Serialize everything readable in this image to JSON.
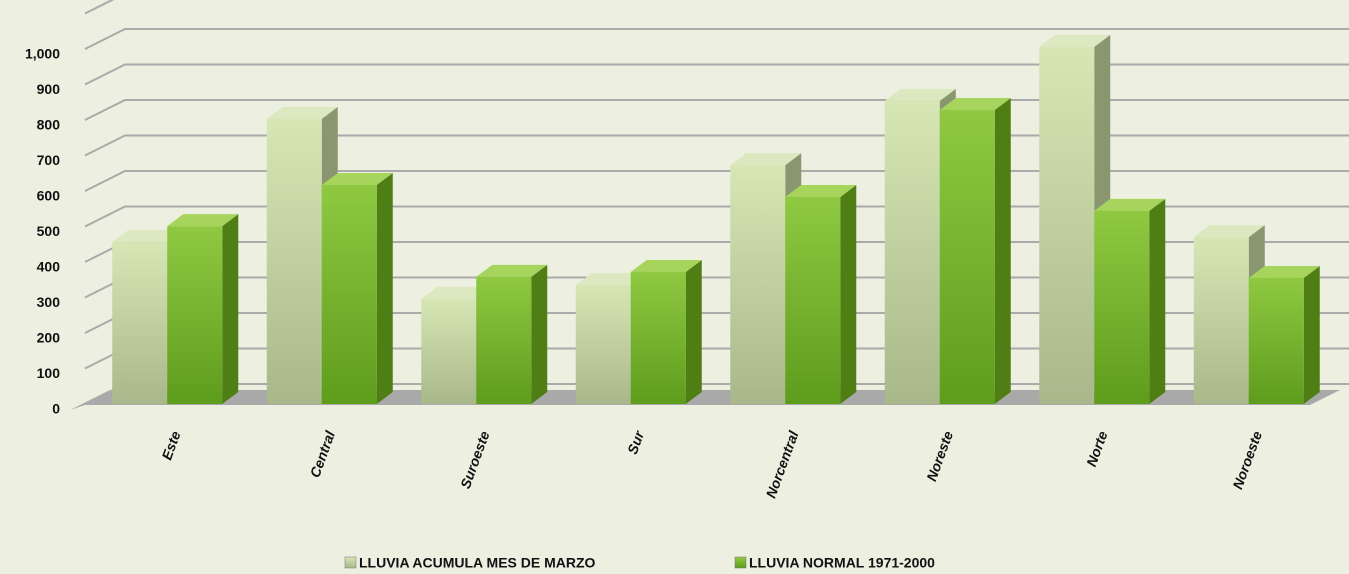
{
  "chart_data": {
    "type": "bar3d",
    "categories": [
      "Este",
      "Central",
      "Suroeste",
      "Sur",
      "Norcentral",
      "Noreste",
      "Norte",
      "Noroeste"
    ],
    "series": [
      {
        "name": "LLUVIA ACUMULA MES DE MARZO",
        "color": "#c5d89a",
        "values": [
          456,
          803,
          296,
          335,
          673,
          854,
          1006,
          470
        ]
      },
      {
        "name": "LLUVIA NORMAL 1971-2000",
        "color": "#7cb82f",
        "values": [
          501,
          617,
          358,
          372,
          583,
          828,
          544,
          355
        ]
      }
    ],
    "ylim": [
      0,
      1100
    ],
    "yticks": [
      0,
      100,
      200,
      300,
      400,
      500,
      600,
      700,
      800,
      900,
      {
        "value": 1000,
        "label": "1,000"
      }
    ],
    "grid": true
  }
}
